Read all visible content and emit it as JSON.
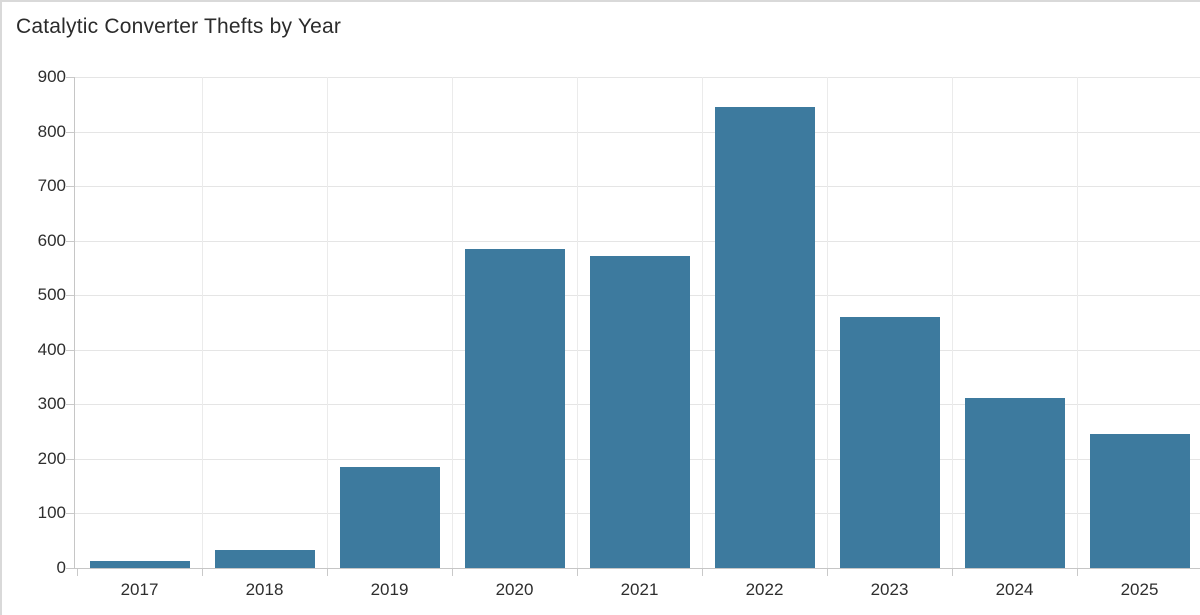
{
  "chart_data": {
    "type": "bar",
    "title": "Catalytic Converter Thefts by Year",
    "categories": [
      "2017",
      "2018",
      "2019",
      "2020",
      "2021",
      "2022",
      "2023",
      "2024",
      "2025"
    ],
    "values": [
      12,
      33,
      185,
      585,
      572,
      845,
      460,
      311,
      246
    ],
    "xlabel": "",
    "ylabel": "",
    "ylim": [
      0,
      900
    ],
    "yticks": [
      0,
      100,
      200,
      300,
      400,
      500,
      600,
      700,
      800,
      900
    ],
    "grid": "horizontal gridlines at every 100; vertical gridlines at category band boundaries",
    "legend_position": "none",
    "bar_color": "#3d7a9e",
    "gridline_color": "#e5e5e5",
    "axis_line_color": "#c6c6c6",
    "label_color": "#2e2e2e",
    "title_color": "#2b2b2b"
  }
}
